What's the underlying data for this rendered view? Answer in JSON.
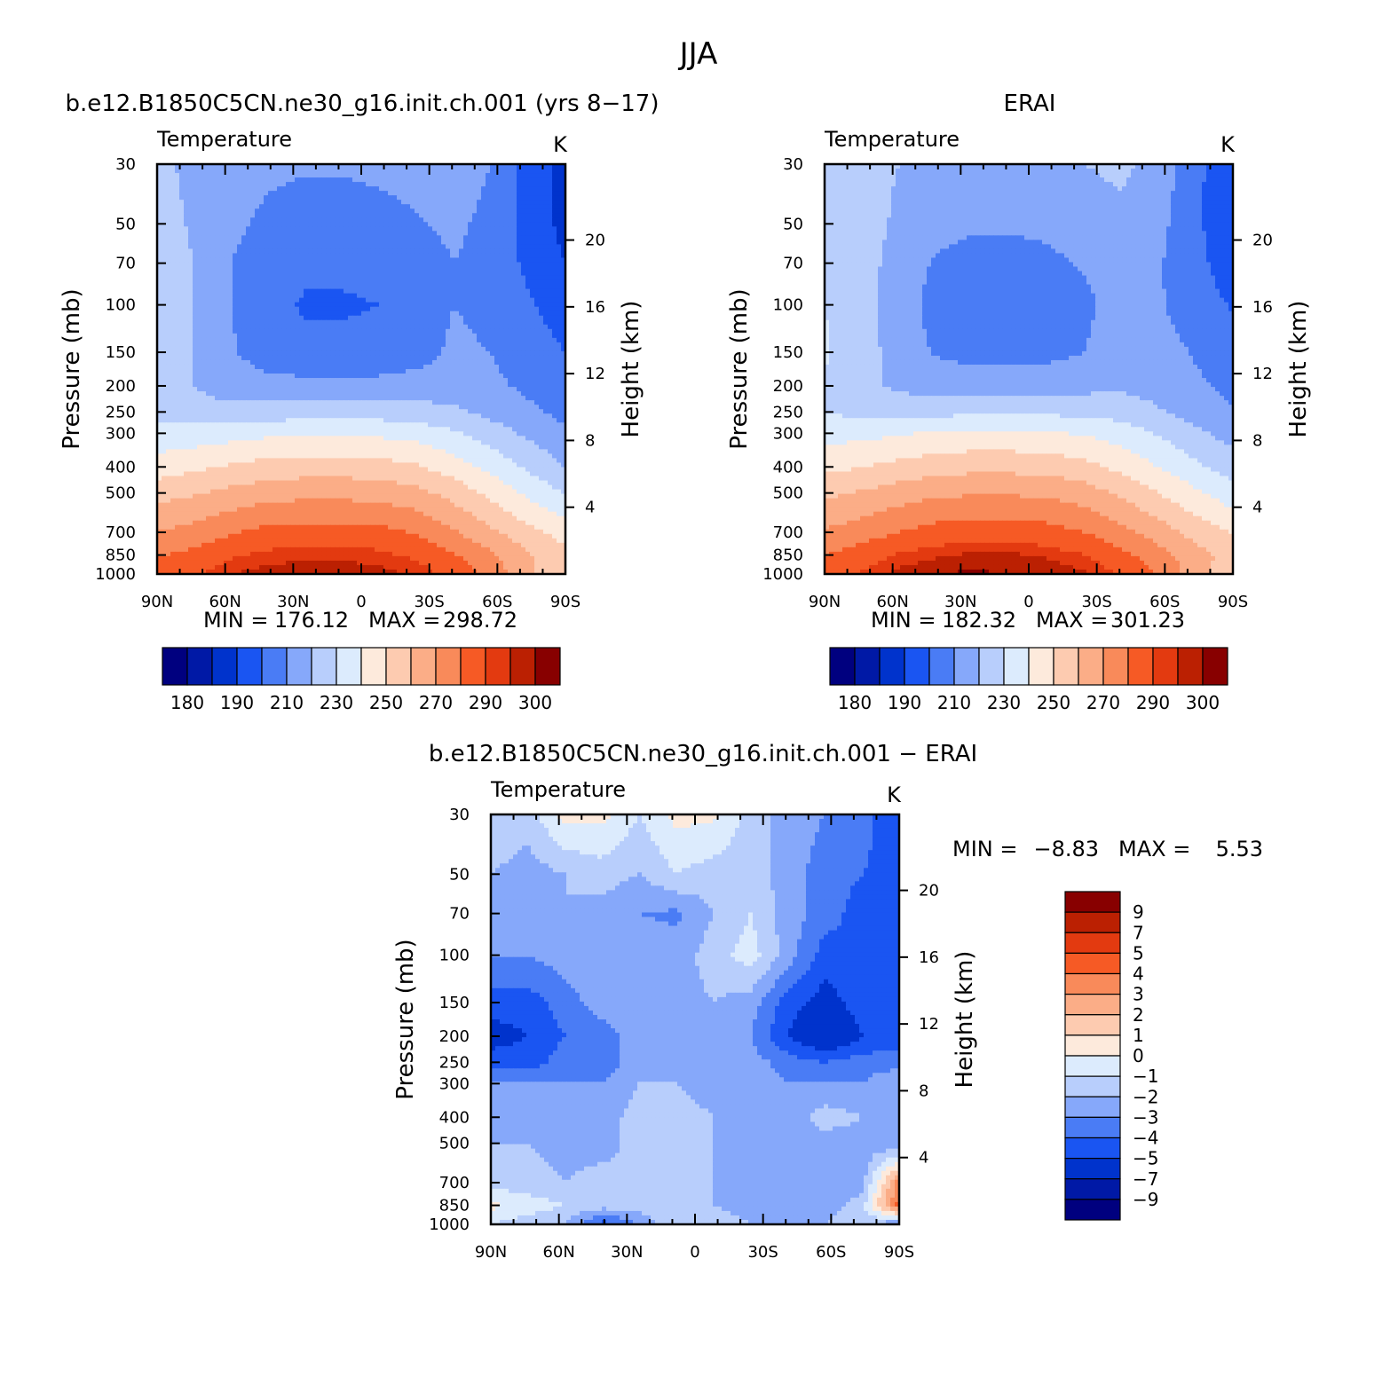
{
  "figure": {
    "title": "JJA",
    "diff_title": "b.e12.B1850C5CN.ne30_g16.init.ch.001 − ERAI"
  },
  "chart_data": [
    {
      "type": "heatmap",
      "panel_title": "b.e12.B1850C5CN.ne30_g16.init.ch.001 (yrs 8−17)",
      "left_label": "Temperature",
      "units": "K",
      "ylabel": "Pressure (mb)",
      "ylabel_right": "Height (km)",
      "x": [
        "90N",
        "60N",
        "30N",
        "0",
        "30S",
        "60S",
        "90S"
      ],
      "x_values": [
        90,
        60,
        30,
        0,
        -30,
        -60,
        -90
      ],
      "y_ticks": [
        30,
        50,
        70,
        100,
        150,
        200,
        250,
        300,
        400,
        500,
        700,
        850,
        1000
      ],
      "y_right_ticks": [
        4,
        8,
        12,
        16,
        20
      ],
      "ylim": [
        1000,
        30
      ],
      "y_scale": "log",
      "min_label": "MIN =",
      "min": "176.12",
      "max_label": "MAX =",
      "max": "298.72",
      "levels": [
        180,
        185,
        190,
        200,
        210,
        220,
        230,
        240,
        250,
        260,
        270,
        280,
        290,
        295,
        300
      ],
      "colorbar_labels": [
        "180",
        "190",
        "210",
        "230",
        "250",
        "270",
        "290",
        "300"
      ],
      "colorbar_orientation": "horizontal",
      "values_grid": [
        [
          222,
          218,
          214,
          212,
          211,
          211,
          212,
          214,
          216,
          210,
          196,
          186
        ],
        [
          223,
          219,
          212,
          208,
          206,
          206,
          207,
          209,
          212,
          207,
          196,
          187
        ],
        [
          224,
          220,
          210,
          204,
          202,
          202,
          203,
          206,
          210,
          206,
          198,
          190
        ],
        [
          225,
          220,
          210,
          203,
          199,
          199,
          200,
          204,
          210,
          207,
          201,
          195
        ],
        [
          225,
          220,
          211,
          205,
          202,
          202,
          203,
          206,
          212,
          210,
          205,
          200
        ],
        [
          224,
          220,
          215,
          213,
          213,
          213,
          213,
          214,
          215,
          212,
          208,
          203
        ],
        [
          226,
          224,
          223,
          224,
          225,
          225,
          225,
          224,
          222,
          217,
          212,
          207
        ],
        [
          233,
          234,
          236,
          238,
          239,
          239,
          238,
          236,
          231,
          225,
          218,
          212
        ],
        [
          245,
          248,
          251,
          254,
          255,
          255,
          254,
          251,
          245,
          237,
          228,
          220
        ],
        [
          256,
          259,
          263,
          266,
          267,
          267,
          266,
          263,
          256,
          247,
          238,
          229
        ],
        [
          270,
          274,
          279,
          283,
          284,
          284,
          283,
          279,
          271,
          262,
          253,
          246
        ],
        [
          279,
          283,
          289,
          292,
          294,
          294,
          292,
          288,
          281,
          272,
          261,
          253
        ],
        [
          284,
          289,
          295,
          298,
          298,
          298,
          297,
          294,
          287,
          276,
          262,
          250
        ]
      ]
    },
    {
      "type": "heatmap",
      "panel_title": "ERAI",
      "left_label": "Temperature",
      "units": "K",
      "ylabel": "Pressure (mb)",
      "ylabel_right": "Height (km)",
      "x": [
        "90N",
        "60N",
        "30N",
        "0",
        "30S",
        "60S",
        "90S"
      ],
      "x_values": [
        90,
        60,
        30,
        0,
        -30,
        -60,
        -90
      ],
      "y_ticks": [
        30,
        50,
        70,
        100,
        150,
        200,
        250,
        300,
        400,
        500,
        700,
        850,
        1000
      ],
      "y_right_ticks": [
        4,
        8,
        12,
        16,
        20
      ],
      "ylim": [
        1000,
        30
      ],
      "y_scale": "log",
      "min_label": "MIN =",
      "min": "182.32",
      "max_label": "MAX =",
      "max": "301.23",
      "levels": [
        180,
        185,
        190,
        200,
        210,
        220,
        230,
        240,
        250,
        260,
        270,
        280,
        290,
        295,
        300
      ],
      "colorbar_labels": [
        "180",
        "190",
        "210",
        "230",
        "250",
        "270",
        "290",
        "300"
      ],
      "colorbar_orientation": "horizontal",
      "values_grid": [
        [
          228,
          224,
          220,
          218,
          217,
          217,
          218,
          220,
          222,
          216,
          203,
          190
        ],
        [
          229,
          225,
          218,
          213,
          211,
          211,
          212,
          215,
          218,
          213,
          202,
          192
        ],
        [
          229,
          225,
          215,
          209,
          207,
          207,
          208,
          211,
          215,
          211,
          203,
          194
        ],
        [
          230,
          225,
          214,
          207,
          203,
          203,
          204,
          208,
          214,
          211,
          205,
          199
        ],
        [
          231,
          225,
          215,
          209,
          206,
          206,
          207,
          210,
          216,
          214,
          209,
          204
        ],
        [
          229,
          223,
          218,
          216,
          216,
          216,
          216,
          217,
          218,
          216,
          212,
          207
        ],
        [
          230,
          227,
          226,
          227,
          228,
          228,
          228,
          227,
          226,
          221,
          216,
          211
        ],
        [
          236,
          237,
          239,
          241,
          242,
          242,
          241,
          239,
          235,
          229,
          222,
          216
        ],
        [
          247,
          250,
          253,
          256,
          257,
          257,
          256,
          253,
          247,
          240,
          232,
          225
        ],
        [
          258,
          261,
          265,
          268,
          269,
          269,
          268,
          265,
          258,
          250,
          242,
          234
        ],
        [
          271,
          275,
          280,
          284,
          285,
          285,
          284,
          280,
          273,
          265,
          256,
          249
        ],
        [
          280,
          285,
          291,
          294,
          296,
          296,
          294,
          290,
          283,
          274,
          264,
          256
        ],
        [
          285,
          291,
          297,
          300,
          301,
          300,
          299,
          296,
          289,
          279,
          265,
          252
        ]
      ]
    },
    {
      "type": "heatmap",
      "left_label": "Temperature",
      "units": "K",
      "ylabel": "Pressure (mb)",
      "ylabel_right": "Height (km)",
      "x": [
        "90N",
        "60N",
        "30N",
        "0",
        "30S",
        "60S",
        "90S"
      ],
      "x_values": [
        90,
        60,
        30,
        0,
        -30,
        -60,
        -90
      ],
      "y_ticks": [
        30,
        50,
        70,
        100,
        150,
        200,
        250,
        300,
        400,
        500,
        700,
        850,
        1000
      ],
      "y_right_ticks": [
        4,
        8,
        12,
        16,
        20
      ],
      "ylim": [
        1000,
        30
      ],
      "y_scale": "log",
      "min_label": "MIN =",
      "min": "−8.83",
      "max_label": "MAX =",
      "max": "5.53",
      "levels": [
        -9,
        -7,
        -5,
        -4,
        -3,
        -2,
        -1,
        0,
        1,
        2,
        3,
        4,
        5,
        7,
        9
      ],
      "colorbar_labels": [
        "9",
        "7",
        "5",
        "4",
        "3",
        "2",
        "1",
        "0",
        "−1",
        "−2",
        "−3",
        "−4",
        "−5",
        "−7",
        "−9"
      ],
      "colorbar_orientation": "vertical",
      "values_grid": [
        [
          -1.0,
          -1.5,
          0.4,
          0.3,
          -1.0,
          0.3,
          0.2,
          -1.5,
          -2.5,
          -3.0,
          -3.5,
          -5.0
        ],
        [
          -2.0,
          -2.5,
          -2.0,
          -1.5,
          -2.0,
          -1.0,
          -1.5,
          -1.5,
          -2.5,
          -3.5,
          -4.0,
          -4.5
        ],
        [
          -2.5,
          -3.0,
          -2.0,
          -2.5,
          -3.0,
          -3.2,
          -2.0,
          -1.0,
          -2.5,
          -3.5,
          -4.5,
          -4.0
        ],
        [
          -3.0,
          -3.0,
          -2.5,
          -2.0,
          -2.5,
          -2.5,
          -1.5,
          -0.5,
          -2.5,
          -4.5,
          -4.0,
          -4.0
        ],
        [
          -4.5,
          -4.5,
          -3.5,
          -2.5,
          -2.5,
          -2.5,
          -2.0,
          -2.5,
          -4.5,
          -5.5,
          -4.5,
          -4.0
        ],
        [
          -5.5,
          -5.0,
          -4.0,
          -3.5,
          -2.5,
          -2.5,
          -2.5,
          -3.0,
          -5.0,
          -6.5,
          -5.0,
          -4.5
        ],
        [
          -4.5,
          -4.5,
          -3.5,
          -3.5,
          -2.5,
          -2.5,
          -2.5,
          -2.5,
          -3.5,
          -4.0,
          -3.5,
          -3.5
        ],
        [
          -3.0,
          -3.0,
          -3.0,
          -3.0,
          -2.0,
          -2.0,
          -2.5,
          -2.5,
          -3.0,
          -3.0,
          -3.0,
          -2.0
        ],
        [
          -2.5,
          -2.5,
          -3.0,
          -2.5,
          -1.5,
          -1.5,
          -2.0,
          -2.5,
          -2.5,
          -1.5,
          -2.0,
          -2.5
        ],
        [
          -2.0,
          -2.0,
          -2.5,
          -2.5,
          -1.5,
          -1.5,
          -2.0,
          -2.5,
          -2.5,
          -2.5,
          -2.5,
          -3.0
        ],
        [
          -1.5,
          -1.5,
          -2.0,
          -1.5,
          -2.0,
          -1.5,
          -2.0,
          -2.5,
          -2.5,
          -2.5,
          -2.5,
          3.5
        ],
        [
          0.3,
          -0.5,
          -1.0,
          -1.5,
          -1.5,
          -1.0,
          -2.0,
          -2.5,
          -2.5,
          -2.5,
          -1.5,
          4.5
        ],
        [
          -1.0,
          -1.5,
          -2.0,
          -4.5,
          -3.0,
          -1.0,
          -1.5,
          -2.0,
          -2.0,
          -2.0,
          -1.0,
          -3.5
        ]
      ]
    }
  ],
  "colors": {
    "palette": [
      "#00007f",
      "#0019a6",
      "#0033cc",
      "#1a55f2",
      "#4a7cf5",
      "#86a8fa",
      "#b8cefc",
      "#dcebfd",
      "#fdeadc",
      "#fdcbb0",
      "#fbad87",
      "#f98a5a",
      "#f65a25",
      "#e33a10",
      "#bb2002",
      "#880000"
    ],
    "missing": "#ffffff"
  }
}
